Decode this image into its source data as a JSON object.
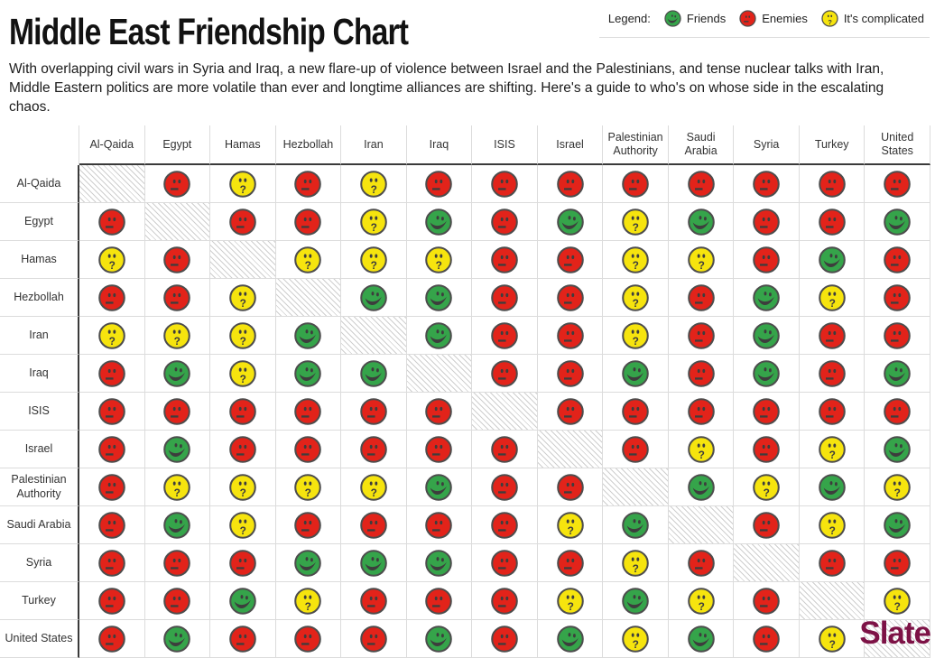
{
  "page": {
    "title": "Middle East Friendship Chart",
    "intro": "With overlapping civil wars in Syria and Iraq, a new flare-up of violence between Israel and the Palestinians, and tense nuclear talks with Iran, Middle Eastern politics are more volatile than ever and longtime alliances are shifting. Here's a guide to who's on whose side in the escalating chaos.",
    "brand": "Slate",
    "brand_color": "#7d1246"
  },
  "legend": {
    "label": "Legend:",
    "items": [
      {
        "key": "friends",
        "label": "Friends",
        "color": "#35a44a"
      },
      {
        "key": "enemies",
        "label": "Enemies",
        "color": "#e2231a"
      },
      {
        "key": "complicated",
        "label": "It's complicated",
        "color": "#f6e40e"
      }
    ]
  },
  "chart_data": {
    "type": "heatmap",
    "title": "Middle East Friendship Chart",
    "entities": [
      "Al-Qaida",
      "Egypt",
      "Hamas",
      "Hezbollah",
      "Iran",
      "Iraq",
      "ISIS",
      "Israel",
      "Palestinian Authority",
      "Saudi Arabia",
      "Syria",
      "Turkey",
      "United States"
    ],
    "states": {
      "F": "Friends",
      "E": "Enemies",
      "C": "It's complicated",
      "S": "self (hatched)"
    },
    "matrix": [
      [
        "S",
        "E",
        "C",
        "E",
        "C",
        "E",
        "E",
        "E",
        "E",
        "E",
        "E",
        "E",
        "E"
      ],
      [
        "E",
        "S",
        "E",
        "E",
        "C",
        "F",
        "E",
        "F",
        "C",
        "F",
        "E",
        "E",
        "F"
      ],
      [
        "C",
        "E",
        "S",
        "C",
        "C",
        "C",
        "E",
        "E",
        "C",
        "C",
        "E",
        "F",
        "E"
      ],
      [
        "E",
        "E",
        "C",
        "S",
        "F",
        "F",
        "E",
        "E",
        "C",
        "E",
        "F",
        "C",
        "E"
      ],
      [
        "C",
        "C",
        "C",
        "F",
        "S",
        "F",
        "E",
        "E",
        "C",
        "E",
        "F",
        "E",
        "E"
      ],
      [
        "E",
        "F",
        "C",
        "F",
        "F",
        "S",
        "E",
        "E",
        "F",
        "E",
        "F",
        "E",
        "F"
      ],
      [
        "E",
        "E",
        "E",
        "E",
        "E",
        "E",
        "S",
        "E",
        "E",
        "E",
        "E",
        "E",
        "E"
      ],
      [
        "E",
        "F",
        "E",
        "E",
        "E",
        "E",
        "E",
        "S",
        "E",
        "C",
        "E",
        "C",
        "F"
      ],
      [
        "E",
        "C",
        "C",
        "C",
        "C",
        "F",
        "E",
        "E",
        "S",
        "F",
        "C",
        "F",
        "C"
      ],
      [
        "E",
        "F",
        "C",
        "E",
        "E",
        "E",
        "E",
        "C",
        "F",
        "S",
        "E",
        "C",
        "F"
      ],
      [
        "E",
        "E",
        "E",
        "F",
        "F",
        "F",
        "E",
        "E",
        "C",
        "E",
        "S",
        "E",
        "E"
      ],
      [
        "E",
        "E",
        "F",
        "C",
        "E",
        "E",
        "E",
        "C",
        "F",
        "C",
        "E",
        "S",
        "C"
      ],
      [
        "E",
        "F",
        "E",
        "E",
        "E",
        "F",
        "E",
        "F",
        "C",
        "F",
        "E",
        "C",
        "S"
      ]
    ],
    "colors": {
      "F": "#35a44a",
      "E": "#e2231a",
      "C": "#f6e40e",
      "outline": "#4d4d4d",
      "ink": "#3d3d3d"
    }
  }
}
